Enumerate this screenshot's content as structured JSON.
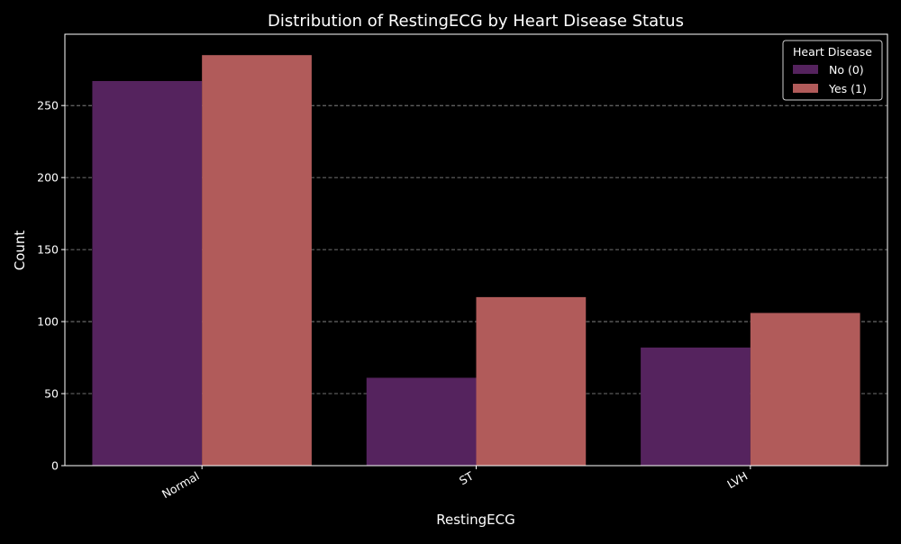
{
  "chart_data": {
    "type": "bar",
    "title": "Distribution of RestingECG by Heart Disease Status",
    "xlabel": "RestingECG",
    "ylabel": "Count",
    "categories": [
      "Normal",
      "ST",
      "LVH"
    ],
    "series": [
      {
        "name": "No (0)",
        "values": [
          267,
          61,
          82
        ],
        "color": "#55235e"
      },
      {
        "name": "Yes (1)",
        "values": [
          285,
          117,
          106
        ],
        "color": "#b15b5a"
      }
    ],
    "ylim": [
      0,
      299.5
    ],
    "yticks": [
      0,
      50,
      100,
      150,
      200,
      250
    ],
    "grid": {
      "axis": "y",
      "style": "dashed"
    },
    "legend": {
      "title": "Heart Disease",
      "placement": "top-right"
    },
    "colors": {
      "background": "#000000",
      "text": "#ffffff",
      "grid": "#b0b0b0",
      "axes": "#ffffff"
    }
  }
}
